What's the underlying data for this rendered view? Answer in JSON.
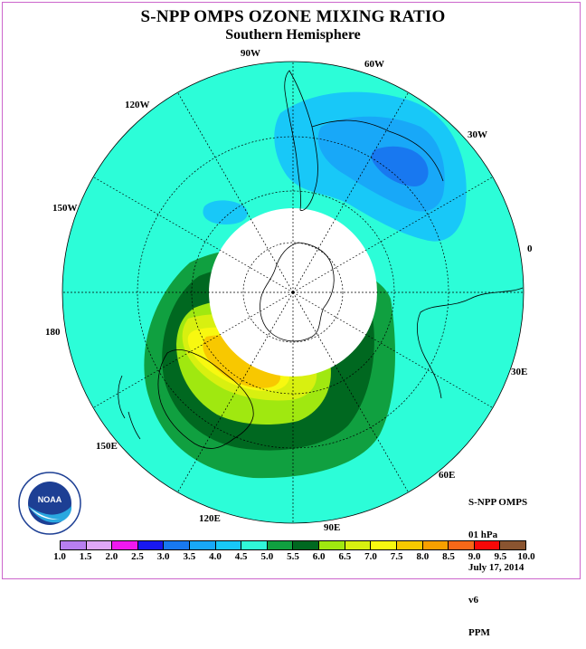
{
  "header": {
    "title": "S-NPP OMPS OZONE MIXING RATIO",
    "subtitle": "Southern Hemisphere"
  },
  "map": {
    "projection": "polar stereographic, south pole",
    "longitude_labels": [
      "90W",
      "60W",
      "30W",
      "0",
      "30E",
      "60E",
      "90E",
      "120E",
      "150E",
      "180",
      "150W",
      "120W"
    ],
    "background_color": "#2cfdd8",
    "missing_data_color": "#ffffff",
    "features": [
      "coastlines",
      "latitude circles",
      "longitude meridians",
      "polar night missing-data disk"
    ]
  },
  "info": {
    "instrument": "S-NPP OMPS",
    "level": "01 hPa",
    "date": "July 17, 2014",
    "version": "v6",
    "units": "PPM"
  },
  "logo": {
    "text": "NOAA",
    "icon": "noaa-logo-icon"
  },
  "colorbar": {
    "ticks": [
      "1.0",
      "1.5",
      "2.0",
      "2.5",
      "3.0",
      "3.5",
      "4.0",
      "4.5",
      "5.0",
      "5.5",
      "6.0",
      "6.5",
      "7.0",
      "7.5",
      "8.0",
      "8.5",
      "9.0",
      "9.5",
      "10.0"
    ],
    "colors": [
      "#b87ff0",
      "#e0a8f8",
      "#f018f0",
      "#1818f0",
      "#1878f0",
      "#18a8f8",
      "#18c8f8",
      "#30f8d8",
      "#10a040",
      "#006820",
      "#a0e810",
      "#d8f010",
      "#f8f810",
      "#f8c800",
      "#f8a000",
      "#f86818",
      "#f80808",
      "#8a5430"
    ]
  }
}
